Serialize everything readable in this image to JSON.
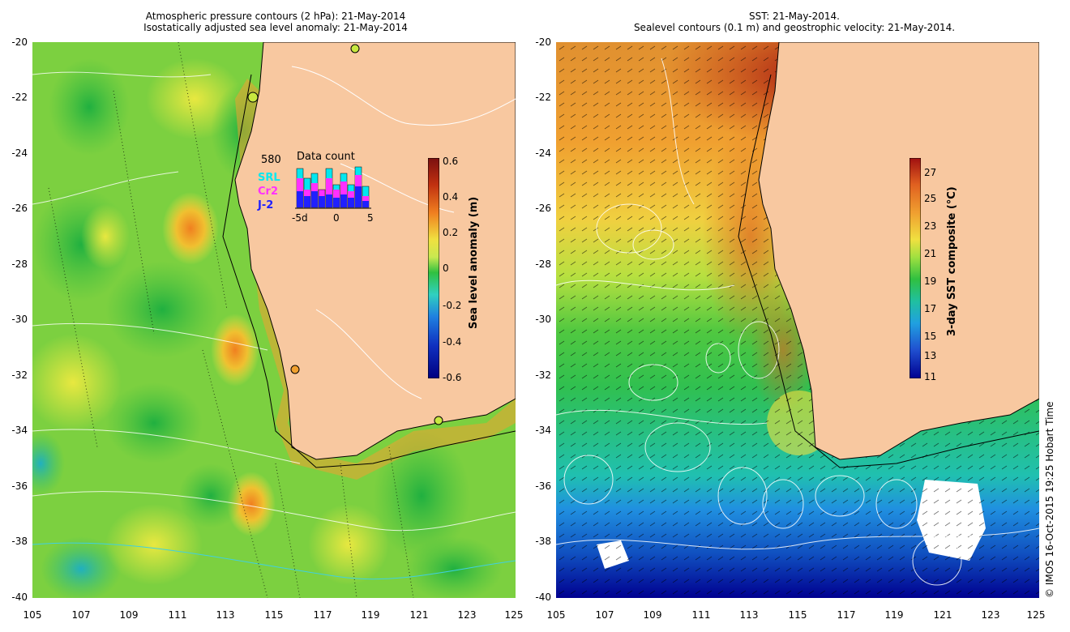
{
  "left_panel": {
    "title_line1": "Atmospheric pressure contours (2 hPa): 21-May-2014",
    "title_line2": "Isostatically adjusted sea level anomaly: 21-May-2014",
    "colorbar": {
      "label": "Sea level anomaly (m)",
      "ticks": [
        "0.6",
        "0.4",
        "0.2",
        "0",
        "-0.2",
        "-0.4",
        "-0.6"
      ],
      "colors": [
        "#7a1010",
        "#c03010",
        "#f08020",
        "#f0e040",
        "#c8e850",
        "#30c040",
        "#30d0c0",
        "#2080e0",
        "#1030c0",
        "#000080"
      ]
    },
    "inset": {
      "count": "580",
      "heading": "Data count",
      "legend": [
        {
          "label": "SRL",
          "color": "#00e8f0"
        },
        {
          "label": "Cr2",
          "color": "#ff30ff"
        },
        {
          "label": "J-2",
          "color": "#2020ff"
        }
      ],
      "xticks": [
        "-5d",
        "0",
        "5"
      ]
    }
  },
  "right_panel": {
    "title_line1": "SST: 21-May-2014.",
    "title_line2": "Sealevel contours (0.1 m) and geostrophic velocity: 21-May-2014.",
    "colorbar": {
      "label": "3-day SST composite (°C)",
      "ticks": [
        "27",
        "25",
        "23",
        "21",
        "19",
        "17",
        "15",
        "13",
        "11"
      ],
      "colors": [
        "#a01010",
        "#e06020",
        "#f0a030",
        "#f0e040",
        "#a0e040",
        "#30c040",
        "#20c0a0",
        "#20a0e0",
        "#2050d0",
        "#000090"
      ]
    }
  },
  "axes": {
    "y_ticks": [
      "-20",
      "-22",
      "-24",
      "-26",
      "-28",
      "-30",
      "-32",
      "-34",
      "-36",
      "-38",
      "-40"
    ],
    "x_ticks": [
      "105",
      "107",
      "109",
      "111",
      "113",
      "115",
      "117",
      "119",
      "121",
      "123",
      "125"
    ]
  },
  "credit": "© IMOS 16-Oct-2015 19:25 Hobart Time",
  "colors": {
    "land": "#f8c8a0",
    "coast": "#000000"
  }
}
